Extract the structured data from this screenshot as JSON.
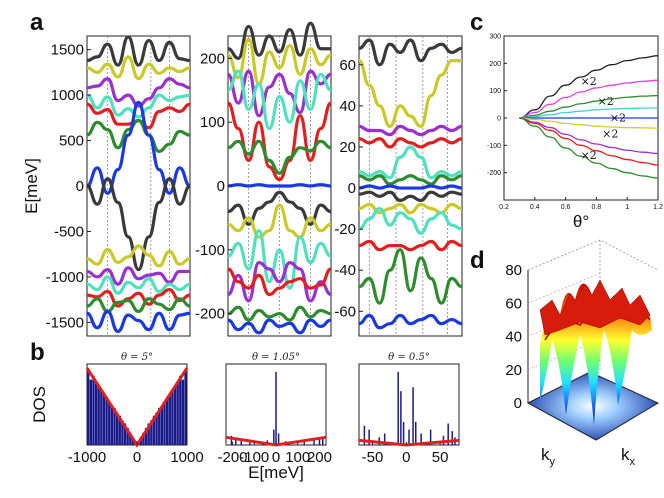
{
  "panel_labels": [
    "a",
    "b",
    "c",
    "d"
  ],
  "chart_data": [
    {
      "type": "line",
      "panel": "a",
      "subplot": 1,
      "ylabel": "E[meV]",
      "ylim": [
        -1650,
        1650
      ],
      "yticks": [
        "1500",
        "1000",
        "500",
        "0",
        "-500",
        "-1000",
        "-1500"
      ],
      "ytick_values": [
        1500,
        1000,
        500,
        0,
        -500,
        -1000,
        -1500
      ],
      "vlines_fraction": [
        0.2,
        0.62,
        0.8
      ],
      "series": [
        {
          "color": "#3a3a3a",
          "values": [
            1380,
            1420,
            1560,
            1330,
            1640,
            1330,
            1600,
            1380,
            1580,
            1400,
            1380
          ]
        },
        {
          "color": "#c9c92a",
          "values": [
            1300,
            1250,
            1340,
            1200,
            1420,
            1180,
            1340,
            1240,
            1300,
            1260,
            1300
          ]
        },
        {
          "color": "#9b30d0",
          "values": [
            1080,
            1100,
            1180,
            940,
            1000,
            880,
            960,
            1080,
            1180,
            1120,
            1080
          ]
        },
        {
          "color": "#50e0c0",
          "values": [
            1000,
            860,
            980,
            780,
            850,
            760,
            860,
            1000,
            940,
            980,
            1000
          ]
        },
        {
          "color": "#e02020",
          "values": [
            900,
            800,
            840,
            680,
            680,
            720,
            640,
            820,
            860,
            820,
            900
          ]
        },
        {
          "color": "#2e8b2e",
          "values": [
            560,
            700,
            620,
            420,
            620,
            720,
            560,
            380,
            460,
            600,
            560
          ]
        },
        {
          "color": "#1a3adf",
          "values": [
            0,
            200,
            -80,
            180,
            560,
            920,
            560,
            180,
            -80,
            200,
            0
          ]
        },
        {
          "color": "#3a3a3a",
          "values": [
            0,
            -200,
            80,
            -180,
            -560,
            -920,
            -560,
            -180,
            80,
            -200,
            0
          ]
        },
        {
          "color": "#c9c92a",
          "values": [
            -800,
            -860,
            -700,
            -840,
            -780,
            -660,
            -760,
            -880,
            -720,
            -860,
            -800
          ]
        },
        {
          "color": "#9b30d0",
          "values": [
            -940,
            -1000,
            -920,
            -1080,
            -900,
            -1020,
            -980,
            -960,
            -1060,
            -940,
            -940
          ]
        },
        {
          "color": "#50e0c0",
          "values": [
            -1080,
            -1140,
            -1000,
            -1180,
            -1060,
            -1120,
            -1020,
            -1160,
            -1080,
            -1140,
            -1080
          ]
        },
        {
          "color": "#e02020",
          "values": [
            -1200,
            -1220,
            -1160,
            -1320,
            -1240,
            -1180,
            -1300,
            -1200,
            -1140,
            -1260,
            -1200
          ]
        },
        {
          "color": "#2e8b2e",
          "values": [
            -1320,
            -1240,
            -1380,
            -1280,
            -1260,
            -1380,
            -1240,
            -1300,
            -1360,
            -1240,
            -1320
          ]
        },
        {
          "color": "#1a3adf",
          "values": [
            -1400,
            -1560,
            -1380,
            -1600,
            -1420,
            -1480,
            -1580,
            -1400,
            -1580,
            -1420,
            -1400
          ]
        }
      ]
    },
    {
      "type": "line",
      "panel": "a",
      "subplot": 2,
      "ylim": [
        -235,
        235
      ],
      "yticks": [
        "200",
        "100",
        "0",
        "-100",
        "-200"
      ],
      "ytick_values": [
        200,
        100,
        0,
        -100,
        -200
      ],
      "vlines_fraction": [
        0.2,
        0.5,
        0.8
      ],
      "series": [
        {
          "color": "#3a3a3a",
          "values": [
            215,
            200,
            250,
            205,
            235,
            210,
            245,
            205,
            255,
            215,
            215
          ]
        },
        {
          "color": "#c9c92a",
          "values": [
            205,
            170,
            230,
            160,
            210,
            185,
            220,
            175,
            215,
            190,
            205
          ]
        },
        {
          "color": "#9b30d0",
          "values": [
            175,
            130,
            180,
            110,
            155,
            175,
            145,
            115,
            180,
            160,
            175
          ]
        },
        {
          "color": "#50e0c0",
          "values": [
            150,
            180,
            120,
            160,
            90,
            140,
            100,
            165,
            120,
            175,
            150
          ]
        },
        {
          "color": "#e02020",
          "values": [
            130,
            90,
            40,
            100,
            30,
            10,
            40,
            110,
            40,
            90,
            130
          ]
        },
        {
          "color": "#2e8b2e",
          "values": [
            60,
            70,
            50,
            70,
            40,
            20,
            45,
            60,
            55,
            70,
            60
          ]
        },
        {
          "color": "#1a3adf",
          "values": [
            0,
            2,
            0,
            2,
            0,
            0,
            0,
            2,
            0,
            2,
            0
          ]
        },
        {
          "color": "#3a3a3a",
          "values": [
            -40,
            -30,
            -60,
            -35,
            -25,
            -10,
            -25,
            -35,
            -60,
            -30,
            -40
          ]
        },
        {
          "color": "#c9c92a",
          "values": [
            -60,
            -70,
            -50,
            -80,
            -70,
            -30,
            -70,
            -80,
            -50,
            -70,
            -60
          ]
        },
        {
          "color": "#50e0c0",
          "values": [
            -110,
            -90,
            -130,
            -70,
            -150,
            -100,
            -160,
            -80,
            -120,
            -90,
            -110
          ]
        },
        {
          "color": "#9b30d0",
          "values": [
            -170,
            -140,
            -180,
            -120,
            -130,
            -150,
            -120,
            -130,
            -180,
            -150,
            -170
          ]
        },
        {
          "color": "#e02020",
          "values": [
            -130,
            -150,
            -160,
            -140,
            -170,
            -160,
            -150,
            -145,
            -160,
            -155,
            -130
          ]
        },
        {
          "color": "#2e8b2e",
          "values": [
            -200,
            -190,
            -210,
            -195,
            -205,
            -200,
            -210,
            -190,
            -205,
            -195,
            -200
          ]
        },
        {
          "color": "#1a3adf",
          "values": [
            -210,
            -225,
            -215,
            -230,
            -210,
            -220,
            -215,
            -230,
            -210,
            -220,
            -210
          ]
        }
      ]
    },
    {
      "type": "line",
      "panel": "a",
      "subplot": 3,
      "ylim": [
        -72,
        74
      ],
      "yticks": [
        "60",
        "40",
        "20",
        "0",
        "-20",
        "-40",
        "-60"
      ],
      "ytick_values": [
        60,
        40,
        20,
        0,
        -20,
        -40,
        -60
      ],
      "vlines_fraction": [
        0.1,
        0.36,
        0.62,
        0.86
      ],
      "series": [
        {
          "color": "#3a3a3a",
          "values": [
            68,
            72,
            60,
            70,
            66,
            72,
            62,
            68,
            70,
            66,
            68
          ]
        },
        {
          "color": "#c9c92a",
          "values": [
            62,
            50,
            40,
            30,
            40,
            35,
            30,
            45,
            55,
            62,
            62
          ]
        },
        {
          "color": "#9b30d0",
          "values": [
            30,
            28,
            28,
            26,
            30,
            28,
            26,
            28,
            30,
            28,
            30
          ]
        },
        {
          "color": "#e02020",
          "values": [
            24,
            22,
            24,
            20,
            24,
            22,
            20,
            22,
            24,
            22,
            24
          ]
        },
        {
          "color": "#50e0c0",
          "values": [
            8,
            6,
            8,
            5,
            15,
            20,
            15,
            5,
            8,
            6,
            8
          ]
        },
        {
          "color": "#2e8b2e",
          "values": [
            6,
            4,
            6,
            2,
            4,
            6,
            4,
            2,
            6,
            4,
            6
          ]
        },
        {
          "color": "#1a3adf",
          "values": [
            0,
            1,
            0,
            1,
            0,
            0,
            0,
            1,
            0,
            1,
            0
          ]
        },
        {
          "color": "#3a3a3a",
          "values": [
            -3,
            -2,
            -4,
            -2,
            -6,
            -4,
            -6,
            -2,
            -4,
            -2,
            -3
          ]
        },
        {
          "color": "#c9c92a",
          "values": [
            -10,
            -8,
            -12,
            -10,
            -8,
            -12,
            -8,
            -10,
            -12,
            -8,
            -10
          ]
        },
        {
          "color": "#50e0c0",
          "values": [
            -20,
            -15,
            -10,
            -18,
            -12,
            -15,
            -22,
            -15,
            -12,
            -18,
            -20
          ]
        },
        {
          "color": "#e02020",
          "values": [
            -28,
            -26,
            -30,
            -28,
            -28,
            -30,
            -28,
            -26,
            -30,
            -26,
            -28
          ]
        },
        {
          "color": "#2e8b2e",
          "values": [
            -48,
            -44,
            -56,
            -40,
            -30,
            -50,
            -34,
            -44,
            -56,
            -44,
            -48
          ]
        },
        {
          "color": "#1a3adf",
          "values": [
            -66,
            -62,
            -68,
            -66,
            -62,
            -66,
            -64,
            -62,
            -66,
            -64,
            -66
          ]
        }
      ]
    },
    {
      "type": "bar",
      "panel": "b",
      "subplot": 1,
      "title": "θ = 5°",
      "ylabel": "DOS",
      "xlim": [
        -1000,
        1000
      ],
      "xticks": [
        "-1000",
        "0",
        "1000"
      ],
      "xtick_values": [
        -1000,
        0,
        1000
      ],
      "bar_color": "#1a1a8a",
      "bar_heights": [
        0.95,
        0.85,
        0.9,
        0.8,
        0.75,
        0.72,
        0.65,
        0.62,
        0.55,
        0.5,
        0.48,
        0.42,
        0.38,
        0.32,
        0.28,
        0.22,
        0.16,
        0.1,
        0.05,
        0.05,
        0.1,
        0.16,
        0.22,
        0.28,
        0.32,
        0.38,
        0.42,
        0.48,
        0.5,
        0.55,
        0.62,
        0.65,
        0.72,
        0.75,
        0.8,
        0.9,
        0.85,
        0.95
      ],
      "fit_color": "#e02020",
      "fit_points": [
        [
          -1000,
          1.0
        ],
        [
          0,
          0.0
        ],
        [
          1000,
          1.0
        ]
      ]
    },
    {
      "type": "bar",
      "panel": "b",
      "subplot": 2,
      "title": "θ = 1.05°",
      "xlim": [
        -230,
        230
      ],
      "xticks": [
        "-200",
        "-100",
        "0",
        "100",
        "200"
      ],
      "xtick_values": [
        -200,
        -100,
        0,
        100,
        200
      ],
      "xlabel": "E[meV]",
      "bar_color": "#1a1a8a",
      "spikes": [
        [
          -205,
          0.12
        ],
        [
          -185,
          0.08
        ],
        [
          -160,
          0.05
        ],
        [
          -120,
          0.04
        ],
        [
          -40,
          0.06
        ],
        [
          -10,
          0.2
        ],
        [
          0,
          0.95
        ],
        [
          12,
          0.15
        ],
        [
          45,
          0.05
        ],
        [
          130,
          0.04
        ],
        [
          175,
          0.06
        ],
        [
          200,
          0.1
        ],
        [
          215,
          0.08
        ]
      ],
      "fit_color": "#e02020",
      "fit_points": [
        [
          -230,
          0.1
        ],
        [
          0,
          0.0
        ],
        [
          230,
          0.1
        ]
      ]
    },
    {
      "type": "bar",
      "panel": "b",
      "subplot": 3,
      "title": "θ = 0.5°",
      "xlim": [
        -70,
        78
      ],
      "xticks": [
        "-50",
        "0",
        "50"
      ],
      "xtick_values": [
        -50,
        0,
        50
      ],
      "bar_color": "#1a1a8a",
      "spikes": [
        [
          -62,
          0.25
        ],
        [
          -55,
          0.2
        ],
        [
          -40,
          0.1
        ],
        [
          -32,
          0.15
        ],
        [
          -12,
          0.95
        ],
        [
          -8,
          0.7
        ],
        [
          -4,
          0.3
        ],
        [
          4,
          0.2
        ],
        [
          10,
          0.75
        ],
        [
          14,
          0.3
        ],
        [
          22,
          0.15
        ],
        [
          36,
          0.2
        ],
        [
          55,
          0.12
        ],
        [
          62,
          0.28
        ],
        [
          68,
          0.18
        ],
        [
          72,
          0.1
        ]
      ],
      "fit_color": "#e02020",
      "fit_points": [
        [
          -70,
          0.06
        ],
        [
          0,
          0.0
        ],
        [
          78,
          0.06
        ]
      ]
    },
    {
      "type": "line",
      "panel": "c",
      "xlabel": "θ°",
      "xlim": [
        0.2,
        1.2
      ],
      "ylim": [
        -300,
        300
      ],
      "xticks": [
        "0.2",
        "0.4",
        "0.6",
        "0.8",
        "1",
        "1.2"
      ],
      "xtick_values": [
        0.2,
        0.4,
        0.6,
        0.8,
        1.0,
        1.2
      ],
      "yticks": [
        "300",
        "200",
        "100",
        "0",
        "-100",
        "-200"
      ],
      "ytick_values": [
        300,
        200,
        100,
        0,
        -100,
        -200
      ],
      "annotations": [
        "×2",
        "×2",
        "×2",
        "×2",
        "×2"
      ],
      "x": [
        0.3,
        0.4,
        0.5,
        0.6,
        0.7,
        0.8,
        0.9,
        1.0,
        1.1,
        1.2
      ],
      "series": [
        {
          "color": "#222222",
          "values": [
            0,
            30,
            80,
            120,
            150,
            175,
            195,
            210,
            220,
            228
          ]
        },
        {
          "color": "#e040e0",
          "values": [
            0,
            20,
            50,
            75,
            95,
            110,
            120,
            128,
            134,
            138
          ]
        },
        {
          "color": "#2e8b2e",
          "values": [
            0,
            10,
            25,
            40,
            52,
            62,
            70,
            76,
            80,
            82
          ]
        },
        {
          "color": "#40d0d0",
          "values": [
            0,
            5,
            12,
            20,
            25,
            30,
            33,
            35,
            36,
            37
          ]
        },
        {
          "color": "#1a3adf",
          "values": [
            0,
            0,
            0,
            0,
            0,
            0,
            0,
            0,
            0,
            0
          ]
        },
        {
          "color": "#d0d020",
          "values": [
            0,
            -5,
            -12,
            -20,
            -25,
            -30,
            -33,
            -35,
            -36,
            -37
          ]
        },
        {
          "color": "#9b30d0",
          "values": [
            0,
            -15,
            -35,
            -60,
            -80,
            -95,
            -108,
            -118,
            -125,
            -130
          ]
        },
        {
          "color": "#e02020",
          "values": [
            0,
            -20,
            -45,
            -75,
            -100,
            -120,
            -138,
            -152,
            -163,
            -172
          ]
        },
        {
          "color": "#2e8b2e",
          "values": [
            0,
            -30,
            -70,
            -110,
            -140,
            -165,
            -185,
            -200,
            -212,
            -220
          ]
        }
      ]
    },
    {
      "type": "heatmap",
      "panel": "d",
      "zlim": [
        0,
        80
      ],
      "zticks": [
        "80",
        "60",
        "40",
        "20",
        "0"
      ],
      "ztick_values": [
        80,
        60,
        40,
        20,
        0
      ],
      "xlabel": "k_x",
      "ylabel": "k_y",
      "colormap": "jet"
    }
  ]
}
